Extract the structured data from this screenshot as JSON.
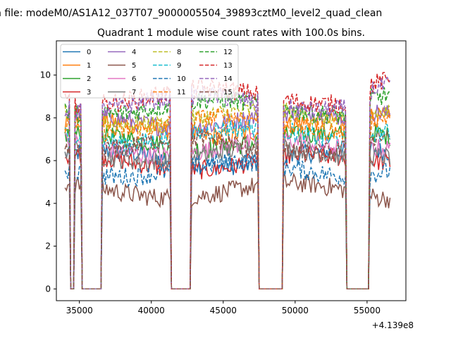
{
  "figure": {
    "suptitle": "n file: modeM0/AS1A12_037T07_9000005504_39893cztM0_level2_quad_clean",
    "title": "Quadrant 1 module wise count rates with 100.0s bins.",
    "offset_label": "+4.139e8"
  },
  "chart_data": {
    "type": "line",
    "title": "Quadrant 1 module wise count rates with 100.0s bins.",
    "xlabel": "",
    "ylabel": "",
    "x_offset": "+4.139e8",
    "xlim": [
      33400,
      57700
    ],
    "ylim": [
      -0.55,
      11.6
    ],
    "xticks": [
      35000,
      40000,
      45000,
      50000,
      55000
    ],
    "xtick_labels": [
      "35000",
      "40000",
      "45000",
      "50000",
      "55000"
    ],
    "yticks": [
      0,
      2,
      4,
      6,
      8,
      10
    ],
    "ytick_labels": [
      "0",
      "2",
      "4",
      "6",
      "8",
      "10"
    ],
    "x_start": 34000,
    "x_end": 56600,
    "bin_seconds": 100,
    "on_intervals": [
      [
        34000,
        34350
      ],
      [
        34650,
        35150
      ],
      [
        36600,
        41300
      ],
      [
        42800,
        47450
      ],
      [
        49200,
        53550
      ],
      [
        55200,
        56600
      ]
    ],
    "legend_location": "upper left",
    "legend_ncol": 4,
    "series": [
      {
        "name": "0",
        "level": 6.1,
        "color": "#1f77b4",
        "style": "solid"
      },
      {
        "name": "1",
        "level": 7.5,
        "color": "#ff7f0e",
        "style": "solid"
      },
      {
        "name": "2",
        "level": 6.9,
        "color": "#2ca02c",
        "style": "solid"
      },
      {
        "name": "3",
        "level": 5.9,
        "color": "#d62728",
        "style": "solid"
      },
      {
        "name": "4",
        "level": 7.9,
        "color": "#9467bd",
        "style": "solid"
      },
      {
        "name": "5",
        "level": 4.6,
        "color": "#8c564b",
        "style": "solid"
      },
      {
        "name": "6",
        "level": 6.6,
        "color": "#e377c2",
        "style": "solid"
      },
      {
        "name": "7",
        "level": 6.3,
        "color": "#7f7f7f",
        "style": "solid"
      },
      {
        "name": "8",
        "level": 8.0,
        "color": "#bcbd22",
        "style": "dashed"
      },
      {
        "name": "9",
        "level": 7.2,
        "color": "#17becf",
        "style": "dashed"
      },
      {
        "name": "10",
        "level": 5.6,
        "color": "#1f77b4",
        "style": "dashed"
      },
      {
        "name": "11",
        "level": 7.7,
        "color": "#ff7f0e",
        "style": "dashed"
      },
      {
        "name": "12",
        "level": 8.5,
        "color": "#2ca02c",
        "style": "dashed"
      },
      {
        "name": "13",
        "level": 9.0,
        "color": "#d62728",
        "style": "dashed"
      },
      {
        "name": "14",
        "level": 8.7,
        "color": "#9467bd",
        "style": "dashed"
      },
      {
        "name": "15",
        "level": 6.7,
        "color": "#8c564b",
        "style": "dashed"
      }
    ]
  }
}
